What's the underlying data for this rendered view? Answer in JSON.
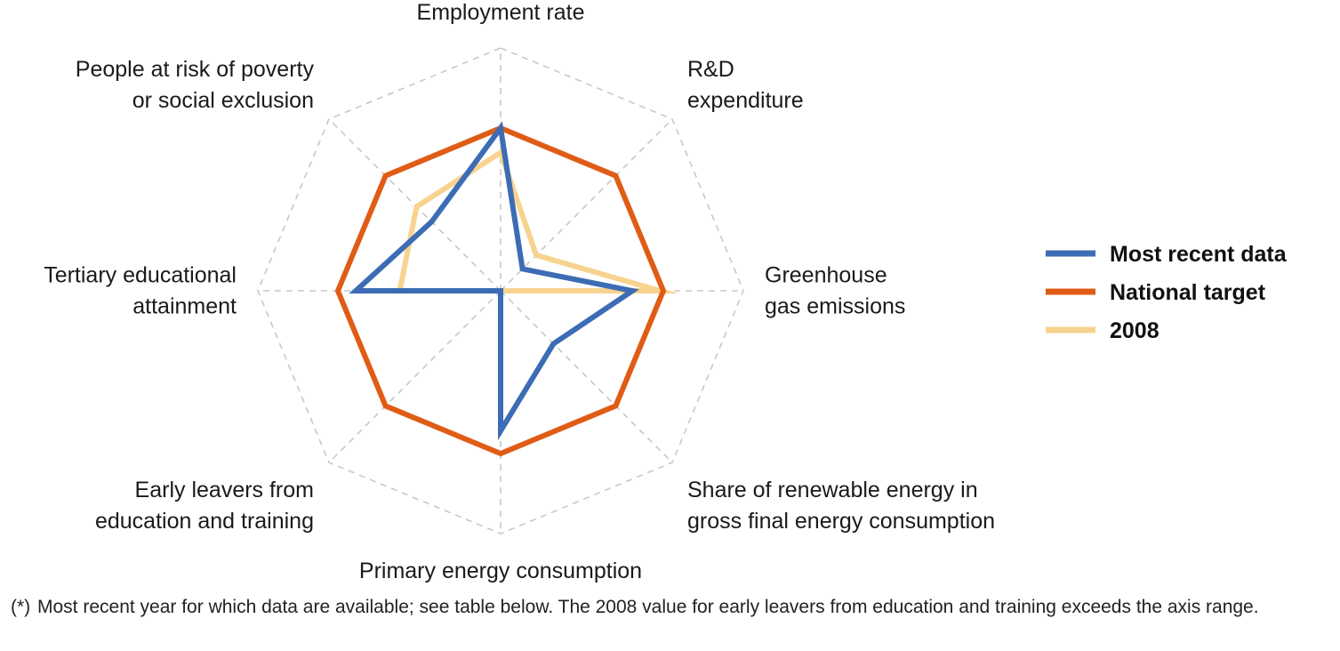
{
  "chart_data": {
    "type": "radar",
    "axes": [
      {
        "label_lines": [
          "Employment rate"
        ]
      },
      {
        "label_lines": [
          "R&D",
          "expenditure"
        ]
      },
      {
        "label_lines": [
          "Greenhouse",
          "gas emissions"
        ]
      },
      {
        "label_lines": [
          "Share of renewable energy in",
          "gross final energy consumption"
        ]
      },
      {
        "label_lines": [
          "Primary energy consumption"
        ]
      },
      {
        "label_lines": [
          "Early leavers from",
          "education and training"
        ]
      },
      {
        "label_lines": [
          "Tertiary educational",
          "attainment"
        ]
      },
      {
        "label_lines": [
          "People at risk of poverty",
          "or social exclusion"
        ]
      }
    ],
    "range": [
      0,
      1
    ],
    "grid": "dashed octagon",
    "legend_position": "right",
    "series": [
      {
        "name": "Most recent data",
        "color": "#3c6cb4",
        "values": [
          1.0,
          0.19,
          0.81,
          0.46,
          0.86,
          0.0,
          0.89,
          0.6
        ]
      },
      {
        "name": "National target",
        "color": "#e05c16",
        "values": [
          1.0,
          1.0,
          1.0,
          1.0,
          1.0,
          1.0,
          1.0,
          1.0
        ]
      },
      {
        "name": "2008",
        "color": "#f7d38f",
        "values": [
          0.85,
          0.31,
          0.98,
          0.0,
          0.0,
          0.0,
          0.62,
          0.73
        ]
      }
    ]
  },
  "footnote": {
    "marker": "(*)",
    "text": "Most recent year for which data are available; see table below. The 2008 value for early leavers from education and training exceeds the axis range."
  }
}
